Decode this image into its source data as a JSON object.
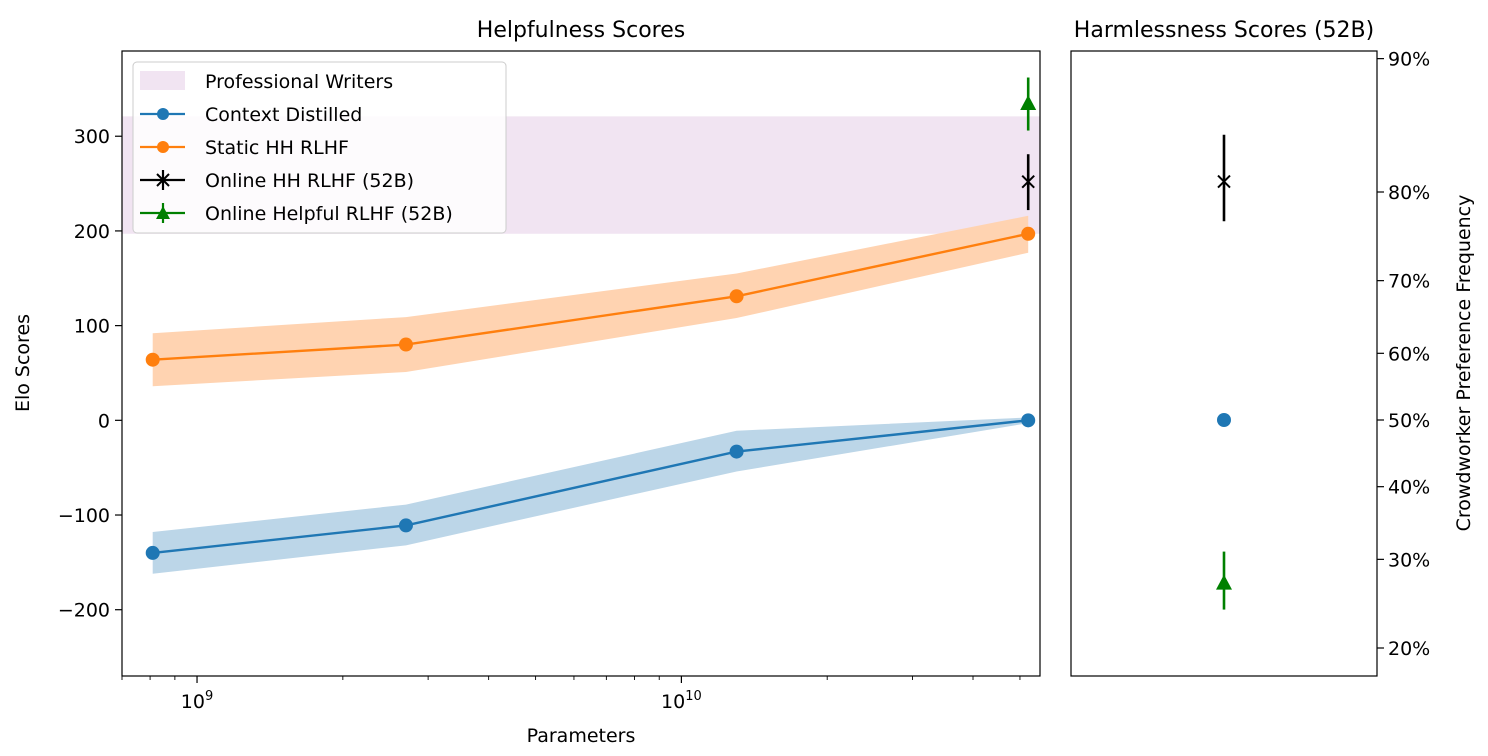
{
  "chart_data": [
    {
      "type": "line",
      "title": "Helpfulness Scores",
      "xlabel": "Parameters",
      "ylabel": "Elo Scores",
      "xscale": "log",
      "xlim": [
        700000000,
        55000000000
      ],
      "ylim": [
        -270,
        390
      ],
      "grid": false,
      "legend_position": "top-left",
      "x_ticks": [
        {
          "value": 1000000000,
          "base": "10",
          "exp": "9"
        },
        {
          "value": 10000000000,
          "base": "10",
          "exp": "10"
        }
      ],
      "y_ticks": [
        {
          "value": -200,
          "label": "−200"
        },
        {
          "value": -100,
          "label": "−100"
        },
        {
          "value": 0,
          "label": "0"
        },
        {
          "value": 100,
          "label": "100"
        },
        {
          "value": 200,
          "label": "200"
        },
        {
          "value": 300,
          "label": "300"
        }
      ],
      "band": {
        "name": "Professional Writers",
        "y_low": 197,
        "y_high": 321,
        "color": "#f1e4f2"
      },
      "series": [
        {
          "name": "Context Distilled",
          "color": "#1f77b4",
          "band_color": "#bcd6e8",
          "marker": "circle",
          "x": [
            810000000,
            2700000000,
            13000000000,
            52000000000
          ],
          "values": [
            -140,
            -111,
            -33,
            0
          ],
          "lower": [
            -162,
            -132,
            -54,
            -3
          ],
          "upper": [
            -118,
            -89,
            -11,
            3
          ]
        },
        {
          "name": "Static HH RLHF",
          "color": "#ff7f0e",
          "band_color": "#ffd3b1",
          "marker": "circle",
          "x": [
            810000000,
            2700000000,
            13000000000,
            52000000000
          ],
          "values": [
            64,
            80,
            131,
            197
          ],
          "lower": [
            36,
            51,
            108,
            177
          ],
          "upper": [
            92,
            109,
            155,
            216
          ]
        },
        {
          "name": "Online HH RLHF (52B)",
          "color": "#000000",
          "marker": "x",
          "x": [
            52000000000
          ],
          "values": [
            252
          ],
          "err_low": [
            222
          ],
          "err_high": [
            281
          ]
        },
        {
          "name": "Online Helpful RLHF (52B)",
          "color": "#008000",
          "marker": "triangle",
          "x": [
            52000000000
          ],
          "values": [
            334
          ],
          "err_low": [
            306
          ],
          "err_high": [
            362
          ]
        }
      ]
    },
    {
      "type": "scatter",
      "title": "Harmlessness Scores (52B)",
      "ylabel": "Crowdworker Preference Frequency",
      "yaxis_side": "right",
      "y_ticks": [
        {
          "value": 20,
          "label": "20%"
        },
        {
          "value": 30,
          "label": "30%"
        },
        {
          "value": 40,
          "label": "40%"
        },
        {
          "value": 50,
          "label": "50%"
        },
        {
          "value": 60,
          "label": "60%"
        },
        {
          "value": 70,
          "label": "70%"
        },
        {
          "value": 80,
          "label": "80%"
        },
        {
          "value": 90,
          "label": "90%"
        }
      ],
      "points": [
        {
          "name": "Online HH RLHF (52B)",
          "marker": "x",
          "color": "#000000",
          "value": 81,
          "err_low": 77,
          "err_high": 85
        },
        {
          "name": "Context Distilled",
          "marker": "circle",
          "color": "#1f77b4",
          "value": 50
        },
        {
          "name": "Online Helpful RLHF (52B)",
          "marker": "triangle",
          "color": "#008000",
          "value": 27,
          "err_low": 24,
          "err_high": 31
        }
      ]
    }
  ]
}
